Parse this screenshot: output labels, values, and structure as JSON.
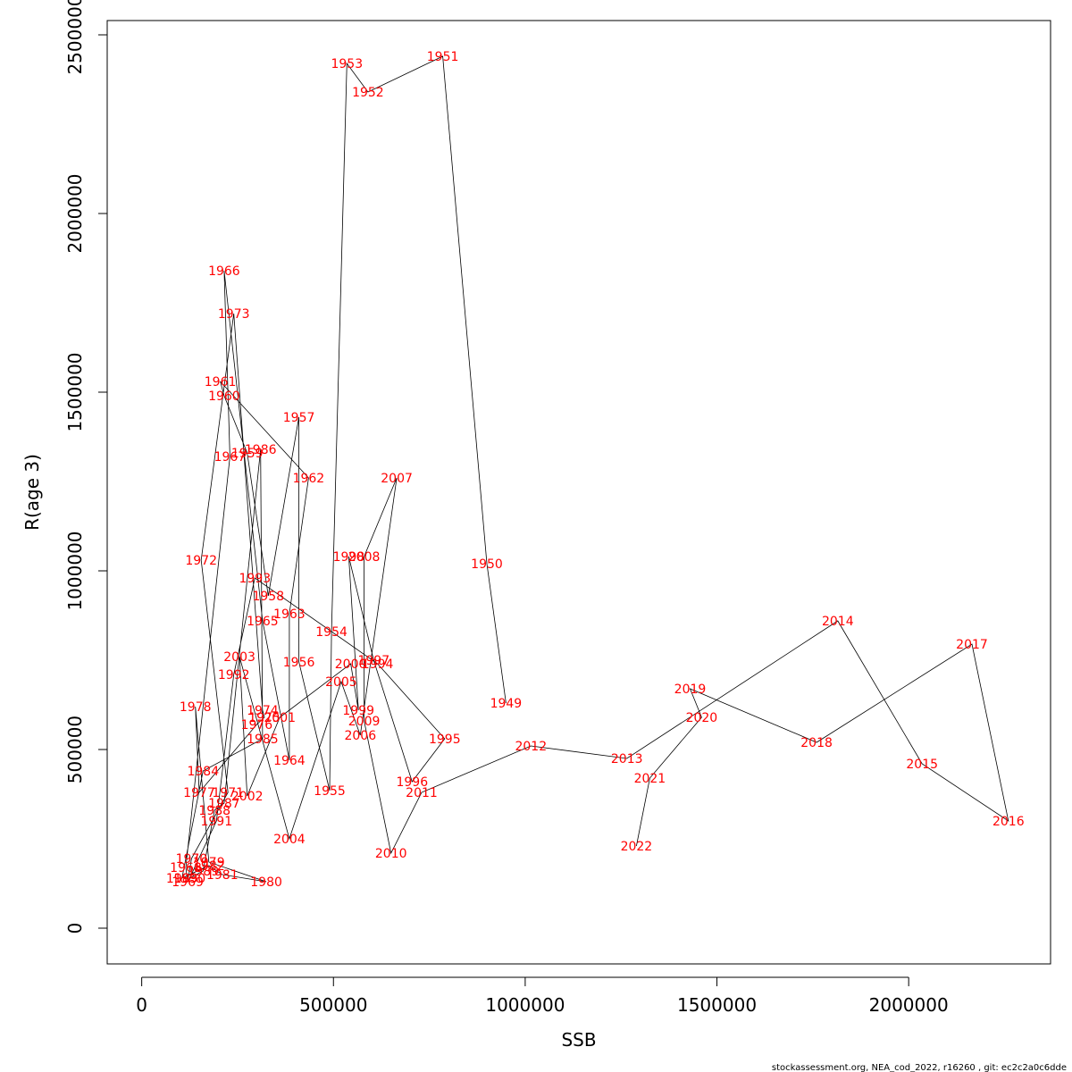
{
  "chart_data": {
    "type": "line",
    "xlabel": "SSB",
    "ylabel": "R(age 3)",
    "xlim": [
      -90000,
      2370000
    ],
    "ylim": [
      -100000,
      2540000
    ],
    "x_ticks": [
      0,
      500000,
      1000000,
      1500000,
      2000000
    ],
    "y_ticks": [
      0,
      500000,
      1000000,
      1500000,
      2000000,
      2500000
    ],
    "line_color": "#000000",
    "label_color": "#ff0000",
    "grid": false,
    "points": [
      {
        "year": "1949",
        "ssb": 950000,
        "r": 630000
      },
      {
        "year": "1950",
        "ssb": 900000,
        "r": 1020000
      },
      {
        "year": "1951",
        "ssb": 785000,
        "r": 2440000
      },
      {
        "year": "1952",
        "ssb": 590000,
        "r": 2340000
      },
      {
        "year": "1953",
        "ssb": 535000,
        "r": 2420000
      },
      {
        "year": "1954",
        "ssb": 495000,
        "r": 830000
      },
      {
        "year": "1955",
        "ssb": 490000,
        "r": 385000
      },
      {
        "year": "1956",
        "ssb": 410000,
        "r": 745000
      },
      {
        "year": "1957",
        "ssb": 410000,
        "r": 1430000
      },
      {
        "year": "1958",
        "ssb": 330000,
        "r": 930000
      },
      {
        "year": "1959",
        "ssb": 275000,
        "r": 1330000
      },
      {
        "year": "1960",
        "ssb": 215000,
        "r": 1490000
      },
      {
        "year": "1961",
        "ssb": 205000,
        "r": 1530000
      },
      {
        "year": "1962",
        "ssb": 435000,
        "r": 1260000
      },
      {
        "year": "1963",
        "ssb": 385000,
        "r": 880000
      },
      {
        "year": "1964",
        "ssb": 385000,
        "r": 470000
      },
      {
        "year": "1965",
        "ssb": 315000,
        "r": 860000
      },
      {
        "year": "1966",
        "ssb": 215000,
        "r": 1840000
      },
      {
        "year": "1967",
        "ssb": 230000,
        "r": 1320000
      },
      {
        "year": "1968",
        "ssb": 115000,
        "r": 170000
      },
      {
        "year": "1969",
        "ssb": 120000,
        "r": 130000
      },
      {
        "year": "1970",
        "ssb": 130000,
        "r": 195000
      },
      {
        "year": "1971",
        "ssb": 225000,
        "r": 380000
      },
      {
        "year": "1972",
        "ssb": 155000,
        "r": 1030000
      },
      {
        "year": "1973",
        "ssb": 240000,
        "r": 1720000
      },
      {
        "year": "1974",
        "ssb": 315000,
        "r": 610000
      },
      {
        "year": "1975",
        "ssb": 320000,
        "r": 590000
      },
      {
        "year": "1976",
        "ssb": 300000,
        "r": 570000
      },
      {
        "year": "1977",
        "ssb": 150000,
        "r": 380000
      },
      {
        "year": "1978",
        "ssb": 140000,
        "r": 620000
      },
      {
        "year": "1979",
        "ssb": 175000,
        "r": 185000
      },
      {
        "year": "1980",
        "ssb": 325000,
        "r": 130000
      },
      {
        "year": "1981",
        "ssb": 210000,
        "r": 150000
      },
      {
        "year": "1982",
        "ssb": 175000,
        "r": 175000
      },
      {
        "year": "1983",
        "ssb": 105000,
        "r": 140000
      },
      {
        "year": "1984",
        "ssb": 160000,
        "r": 440000
      },
      {
        "year": "1985",
        "ssb": 315000,
        "r": 530000
      },
      {
        "year": "1986",
        "ssb": 310000,
        "r": 1340000
      },
      {
        "year": "1987",
        "ssb": 215000,
        "r": 350000
      },
      {
        "year": "1988",
        "ssb": 190000,
        "r": 330000
      },
      {
        "year": "1989",
        "ssb": 160000,
        "r": 160000
      },
      {
        "year": "1990",
        "ssb": 125000,
        "r": 140000
      },
      {
        "year": "1991",
        "ssb": 195000,
        "r": 300000
      },
      {
        "year": "1992",
        "ssb": 240000,
        "r": 710000
      },
      {
        "year": "1993",
        "ssb": 295000,
        "r": 980000
      },
      {
        "year": "1994",
        "ssb": 615000,
        "r": 740000
      },
      {
        "year": "1995",
        "ssb": 790000,
        "r": 530000
      },
      {
        "year": "1996",
        "ssb": 705000,
        "r": 410000
      },
      {
        "year": "1997",
        "ssb": 605000,
        "r": 750000
      },
      {
        "year": "1998",
        "ssb": 540000,
        "r": 1040000
      },
      {
        "year": "1999",
        "ssb": 565000,
        "r": 610000
      },
      {
        "year": "2000",
        "ssb": 545000,
        "r": 740000
      },
      {
        "year": "2001",
        "ssb": 360000,
        "r": 590000
      },
      {
        "year": "2002",
        "ssb": 275000,
        "r": 370000
      },
      {
        "year": "2003",
        "ssb": 255000,
        "r": 760000
      },
      {
        "year": "2004",
        "ssb": 385000,
        "r": 250000
      },
      {
        "year": "2005",
        "ssb": 520000,
        "r": 690000
      },
      {
        "year": "2006",
        "ssb": 570000,
        "r": 540000
      },
      {
        "year": "2007",
        "ssb": 665000,
        "r": 1260000
      },
      {
        "year": "2008",
        "ssb": 580000,
        "r": 1040000
      },
      {
        "year": "2009",
        "ssb": 580000,
        "r": 580000
      },
      {
        "year": "2010",
        "ssb": 650000,
        "r": 210000
      },
      {
        "year": "2011",
        "ssb": 730000,
        "r": 380000
      },
      {
        "year": "2012",
        "ssb": 1015000,
        "r": 510000
      },
      {
        "year": "2013",
        "ssb": 1265000,
        "r": 475000
      },
      {
        "year": "2014",
        "ssb": 1815000,
        "r": 860000
      },
      {
        "year": "2015",
        "ssb": 2035000,
        "r": 460000
      },
      {
        "year": "2016",
        "ssb": 2260000,
        "r": 300000
      },
      {
        "year": "2017",
        "ssb": 2165000,
        "r": 795000
      },
      {
        "year": "2018",
        "ssb": 1760000,
        "r": 520000
      },
      {
        "year": "2019",
        "ssb": 1430000,
        "r": 670000
      },
      {
        "year": "2020",
        "ssb": 1460000,
        "r": 590000
      },
      {
        "year": "2021",
        "ssb": 1325000,
        "r": 420000
      },
      {
        "year": "2022",
        "ssb": 1290000,
        "r": 230000
      }
    ]
  },
  "footer": "stockassessment.org, NEA_cod_2022, r16260 , git: ec2c2a0c6dde"
}
